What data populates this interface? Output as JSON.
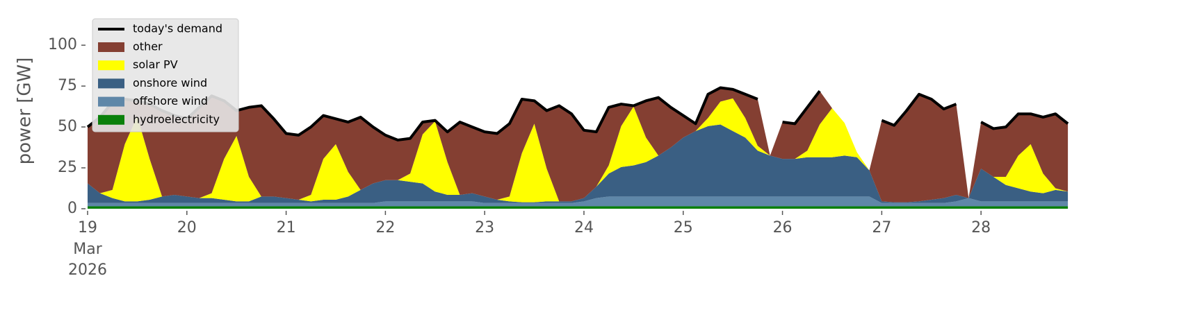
{
  "chart_data": {
    "type": "area",
    "stacked": true,
    "ylabel": "power [GW]",
    "ylim": [
      0,
      120
    ],
    "yticks": [
      0,
      25,
      50,
      75,
      100
    ],
    "xlim": [
      "2026-03-19T00:00",
      "2026-03-28T23:00"
    ],
    "xticks": [
      {
        "value": "2026-03-19",
        "label": "19"
      },
      {
        "value": "2026-03-20",
        "label": "20"
      },
      {
        "value": "2026-03-21",
        "label": "21"
      },
      {
        "value": "2026-03-22",
        "label": "22"
      },
      {
        "value": "2026-03-23",
        "label": "23"
      },
      {
        "value": "2026-03-24",
        "label": "24"
      },
      {
        "value": "2026-03-25",
        "label": "25"
      },
      {
        "value": "2026-03-26",
        "label": "26"
      },
      {
        "value": "2026-03-27",
        "label": "27"
      },
      {
        "value": "2026-03-28",
        "label": "28"
      }
    ],
    "x_date_labels": [
      "Mar",
      "2026"
    ],
    "grid": false,
    "legend": "upper left",
    "x": [
      "2026-03-19T00:00",
      "2026-03-19T03:00",
      "2026-03-19T06:00",
      "2026-03-19T09:00",
      "2026-03-19T12:00",
      "2026-03-19T15:00",
      "2026-03-19T18:00",
      "2026-03-19T21:00",
      "2026-03-20T00:00",
      "2026-03-20T03:00",
      "2026-03-20T06:00",
      "2026-03-20T09:00",
      "2026-03-20T12:00",
      "2026-03-20T15:00",
      "2026-03-20T18:00",
      "2026-03-20T21:00",
      "2026-03-21T00:00",
      "2026-03-21T03:00",
      "2026-03-21T06:00",
      "2026-03-21T09:00",
      "2026-03-21T12:00",
      "2026-03-21T15:00",
      "2026-03-21T18:00",
      "2026-03-21T21:00",
      "2026-03-22T00:00",
      "2026-03-22T03:00",
      "2026-03-22T06:00",
      "2026-03-22T09:00",
      "2026-03-22T12:00",
      "2026-03-22T15:00",
      "2026-03-22T18:00",
      "2026-03-22T21:00",
      "2026-03-23T00:00",
      "2026-03-23T03:00",
      "2026-03-23T06:00",
      "2026-03-23T09:00",
      "2026-03-23T12:00",
      "2026-03-23T15:00",
      "2026-03-23T18:00",
      "2026-03-23T21:00",
      "2026-03-24T00:00",
      "2026-03-24T03:00",
      "2026-03-24T06:00",
      "2026-03-24T09:00",
      "2026-03-24T12:00",
      "2026-03-24T15:00",
      "2026-03-24T18:00",
      "2026-03-24T21:00",
      "2026-03-25T00:00",
      "2026-03-25T03:00",
      "2026-03-25T06:00",
      "2026-03-25T09:00",
      "2026-03-25T12:00",
      "2026-03-25T15:00",
      "2026-03-25T18:00",
      "2026-03-25T21:00",
      "2026-03-26T00:00",
      "2026-03-26T03:00",
      "2026-03-26T06:00",
      "2026-03-26T09:00",
      "2026-03-26T12:00",
      "2026-03-26T15:00",
      "2026-03-26T18:00",
      "2026-03-26T21:00",
      "2026-03-27T00:00",
      "2026-03-27T03:00",
      "2026-03-27T06:00",
      "2026-03-27T09:00",
      "2026-03-27T12:00",
      "2026-03-27T15:00",
      "2026-03-27T18:00",
      "2026-03-27T21:00",
      "2026-03-28T00:00",
      "2026-03-28T03:00",
      "2026-03-28T06:00",
      "2026-03-28T09:00",
      "2026-03-28T12:00",
      "2026-03-28T15:00",
      "2026-03-28T18:00",
      "2026-03-28T21:00"
    ],
    "demand": {
      "name": "today's demand",
      "color": "#000000",
      "values": [
        50,
        56,
        65,
        67,
        66,
        64,
        60,
        57,
        55,
        62,
        69,
        66,
        60,
        62,
        63,
        55,
        46,
        45,
        50,
        57,
        55,
        53,
        56,
        50,
        45,
        42,
        43,
        53,
        54,
        47,
        53,
        50,
        47,
        46,
        52,
        67,
        66,
        60,
        63,
        58,
        48,
        47,
        62,
        64,
        63,
        66,
        68,
        62,
        57,
        52,
        70,
        74,
        73,
        70,
        67,
        null,
        53,
        52,
        62,
        72,
        null,
        null,
        null,
        null,
        54,
        51,
        60,
        70,
        67,
        61,
        64,
        null,
        53,
        49,
        50,
        58,
        58,
        56,
        58,
        52
      ]
    },
    "series": [
      {
        "name": "other",
        "color": "#843f32",
        "values": [
          34.5,
          46.5,
          53.5,
          27.5,
          9.5,
          33.5,
          52.5,
          48.5,
          47.5,
          55.5,
          59.5,
          35.5,
          15.5,
          42.5,
          55.5,
          47.5,
          39.5,
          39.5,
          41.5,
          26.5,
          15.5,
          30.5,
          44.5,
          34.5,
          27.5,
          24.5,
          21.5,
          7.5,
          0.5,
          18.5,
          44.5,
          40.5,
          39.5,
          40.5,
          44.5,
          33,
          14,
          35.5,
          58.5,
          53.5,
          41.5,
          33.5,
          35.5,
          13.5,
          0.5,
          22.5,
          35.5,
          24.5,
          13.5,
          4.5,
          14.5,
          8.5,
          5.5,
          14.5,
          28.5,
          0,
          22.5,
          21.5,
          26.5,
          20.5,
          0,
          0,
          0,
          0,
          49.5,
          47,
          56,
          65.5,
          61.5,
          54.5,
          55.5,
          0,
          28.5,
          29.5,
          30.5,
          25.5,
          18.5,
          34.5,
          45.5,
          41.5
        ]
      },
      {
        "name": "solar PV",
        "color": "#ffff00",
        "values": [
          0,
          0,
          5,
          35,
          52,
          25,
          0,
          0,
          0,
          0,
          3,
          25,
          40,
          15,
          0,
          0,
          0,
          0,
          4,
          25,
          34,
          15,
          0,
          0,
          0,
          0,
          5,
          30,
          43,
          20,
          0,
          0,
          0,
          0,
          3,
          30,
          48,
          20,
          0,
          0,
          0,
          0,
          5,
          25,
          36,
          15,
          0,
          0,
          0,
          0,
          5,
          14,
          20,
          12,
          3,
          0,
          0,
          0,
          4,
          20,
          30,
          20,
          3,
          0,
          0,
          0,
          0,
          0,
          0,
          0,
          0,
          0,
          0,
          0,
          5,
          20,
          29,
          12,
          1,
          0
        ]
      },
      {
        "name": "onshore wind",
        "color": "#3a5f83",
        "values": [
          12,
          6,
          3,
          1,
          1,
          2,
          4,
          5,
          4,
          3,
          3,
          2,
          1,
          1,
          4,
          4,
          3,
          2,
          1,
          2,
          2,
          4,
          8,
          12,
          13,
          13,
          12,
          11,
          6,
          4,
          4,
          5,
          4,
          2,
          1,
          0.5,
          0.5,
          1,
          1,
          1,
          2,
          7,
          14,
          18,
          19,
          21,
          25,
          30,
          36,
          40,
          43,
          44,
          40,
          36,
          28,
          25,
          23,
          23,
          24,
          24,
          24,
          25,
          24,
          16,
          1,
          0.5,
          0.5,
          1,
          2,
          3,
          4,
          0,
          20,
          15,
          10,
          8,
          6,
          5,
          7,
          6
        ]
      },
      {
        "name": "offshore wind",
        "color": "#5f87a8",
        "values": [
          2,
          2,
          2,
          2,
          2,
          2,
          2,
          2,
          2,
          2,
          2,
          2,
          2,
          2,
          2,
          2,
          2,
          2,
          2,
          2,
          2,
          2,
          2,
          2,
          3,
          3,
          3,
          3,
          3,
          3,
          3,
          3,
          2,
          2,
          2,
          2,
          2,
          2,
          2,
          2,
          3,
          5,
          6,
          6,
          6,
          6,
          6,
          6,
          6,
          6,
          6,
          6,
          6,
          6,
          6,
          6,
          6,
          6,
          6,
          6,
          6,
          6,
          6,
          6,
          2,
          2,
          2,
          2,
          2,
          2,
          3,
          5,
          3,
          3,
          3,
          3,
          3,
          3,
          3,
          3
        ]
      },
      {
        "name": "hydroelectricity",
        "color": "#0b800b",
        "values": [
          1.5,
          1.5,
          1.5,
          1.5,
          1.5,
          1.5,
          1.5,
          1.5,
          1.5,
          1.5,
          1.5,
          1.5,
          1.5,
          1.5,
          1.5,
          1.5,
          1.5,
          1.5,
          1.5,
          1.5,
          1.5,
          1.5,
          1.5,
          1.5,
          1.5,
          1.5,
          1.5,
          1.5,
          1.5,
          1.5,
          1.5,
          1.5,
          1.5,
          1.5,
          1.5,
          1.5,
          1.5,
          1.5,
          1.5,
          1.5,
          1.5,
          1.5,
          1.5,
          1.5,
          1.5,
          1.5,
          1.5,
          1.5,
          1.5,
          1.5,
          1.5,
          1.5,
          1.5,
          1.5,
          1.5,
          1.5,
          1.5,
          1.5,
          1.5,
          1.5,
          1.5,
          1.5,
          1.5,
          1.5,
          1.5,
          1.5,
          1.5,
          1.5,
          1.5,
          1.5,
          1.5,
          1.5,
          1.5,
          1.5,
          1.5,
          1.5,
          1.5,
          1.5,
          1.5,
          1.5
        ]
      }
    ]
  }
}
